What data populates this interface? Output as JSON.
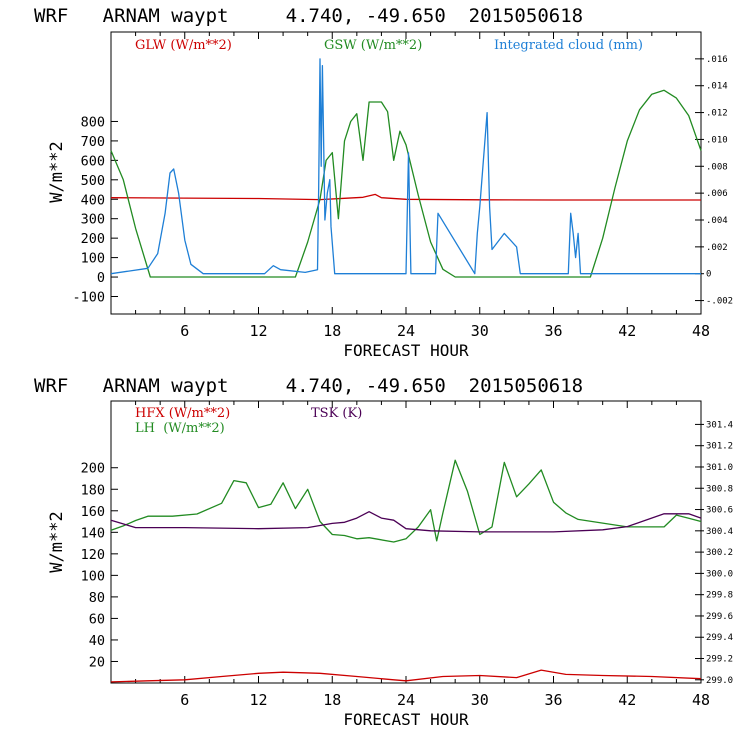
{
  "chart_data": [
    {
      "type": "line",
      "title": "WRF   ARNAM waypt     4.740, -49.650  2015050618",
      "xlabel": "FORECAST HOUR",
      "ylabel": "W/m**2",
      "xlim": [
        0,
        48
      ],
      "ylim": [
        -190,
        1260
      ],
      "x_ticks": [
        6,
        12,
        18,
        24,
        30,
        36,
        42,
        48
      ],
      "y_ticks": [
        -100,
        0,
        100,
        200,
        300,
        400,
        500,
        600,
        700,
        800
      ],
      "y2_ticks": [
        ".016",
        ".014",
        ".012",
        ".010",
        ".008",
        ".006",
        ".004",
        ".002",
        "0",
        "-.002"
      ],
      "y2_values": [
        0.016,
        0.014,
        0.012,
        0.01,
        0.008,
        0.006,
        0.004,
        0.002,
        0,
        -0.002
      ],
      "y2lim": [
        -0.003,
        0.018
      ],
      "legend": [
        {
          "label": "GLW (W/m**2)",
          "color": "#cc0000"
        },
        {
          "label": "GSW (W/m**2)",
          "color": "#228b22"
        },
        {
          "label": "Integrated cloud (mm)",
          "color": "#1e7fd6"
        }
      ],
      "series": [
        {
          "name": "GLW",
          "axis": "left",
          "color": "#cc0000",
          "x": [
            0,
            6,
            12,
            17,
            19,
            20.5,
            21.5,
            22,
            24,
            30,
            36,
            42,
            48
          ],
          "y": [
            408,
            406,
            404,
            398,
            405,
            410,
            425,
            408,
            400,
            397,
            396,
            396,
            396
          ]
        },
        {
          "name": "GSW",
          "axis": "left",
          "color": "#228b22",
          "x": [
            0,
            1,
            2,
            3.2,
            15,
            16,
            17,
            17.5,
            18,
            18.5,
            19,
            19.5,
            20,
            20.5,
            21,
            22,
            22.5,
            23,
            23.5,
            24,
            25,
            26,
            27,
            28,
            39,
            40,
            41,
            42,
            43,
            44,
            45,
            46,
            47,
            48
          ],
          "y": [
            650,
            500,
            250,
            0,
            0,
            180,
            400,
            600,
            640,
            300,
            700,
            800,
            840,
            600,
            900,
            900,
            850,
            600,
            750,
            680,
            420,
            180,
            40,
            0,
            0,
            200,
            460,
            700,
            860,
            940,
            960,
            920,
            830,
            650
          ]
        },
        {
          "name": "Integrated cloud",
          "axis": "right",
          "color": "#1e7fd6",
          "x": [
            0,
            3,
            3.8,
            4.4,
            4.8,
            5.1,
            5.5,
            6,
            6.5,
            7.5,
            12.5,
            13.2,
            13.8,
            15.8,
            16.8,
            16.9,
            17,
            17.1,
            17.2,
            17.4,
            17.6,
            17.8,
            17.9,
            18.2,
            24,
            24.2,
            24.4,
            26.4,
            26.6,
            29.6,
            29.8,
            30,
            30.6,
            30.8,
            31,
            32,
            33,
            33.3,
            37.2,
            37.4,
            37.6,
            37.8,
            38,
            38.2,
            39,
            48
          ],
          "y": [
            0,
            0.0004,
            0.0015,
            0.0045,
            0.0075,
            0.0078,
            0.006,
            0.0025,
            0.0007,
            0,
            0,
            0.0006,
            0.0003,
            0.0001,
            0.0003,
            0.0065,
            0.016,
            0.008,
            0.0155,
            0.004,
            0.006,
            0.007,
            0.0035,
            0,
            0,
            0.009,
            0,
            0,
            0.0045,
            0,
            0.003,
            0.005,
            0.012,
            0.005,
            0.0018,
            0.003,
            0.002,
            0,
            0,
            0.0045,
            0.003,
            0.0012,
            0.003,
            0,
            0,
            0
          ]
        }
      ]
    },
    {
      "type": "line",
      "title": "WRF   ARNAM waypt     4.740, -49.650  2015050618",
      "xlabel": "FORECAST HOUR",
      "ylabel": "W/m**2",
      "xlim": [
        0,
        48
      ],
      "ylim": [
        0,
        262
      ],
      "x_ticks": [
        6,
        12,
        18,
        24,
        30,
        36,
        42,
        48
      ],
      "y_ticks": [
        20,
        40,
        60,
        80,
        100,
        120,
        140,
        160,
        180,
        200
      ],
      "y2_ticks": [
        "301.4",
        "301.2",
        "301.0",
        "300.8",
        "300.6",
        "300.4",
        "300.2",
        "300.0",
        "299.8",
        "299.6",
        "299.4",
        "299.2",
        "299.0"
      ],
      "y2_values": [
        301.4,
        301.2,
        301.0,
        300.8,
        300.6,
        300.4,
        300.2,
        300.0,
        299.8,
        299.6,
        299.4,
        299.2,
        299.0
      ],
      "y2lim": [
        298.97,
        301.62
      ],
      "legend": [
        {
          "label": "HFX (W/m**2)",
          "color": "#cc0000"
        },
        {
          "label": "LH  (W/m**2)",
          "color": "#228b22"
        },
        {
          "label": "TSK (K)",
          "color": "#4b0055"
        }
      ],
      "series": [
        {
          "name": "HFX",
          "axis": "left",
          "color": "#cc0000",
          "x": [
            0,
            3,
            6,
            9,
            12,
            14,
            17,
            20,
            23,
            24,
            27,
            30,
            33,
            35,
            37,
            40,
            44,
            48
          ],
          "y": [
            1,
            2,
            3,
            6,
            9,
            10,
            9,
            6,
            3,
            2,
            6,
            7,
            5,
            12,
            8,
            7,
            6,
            4
          ]
        },
        {
          "name": "LH",
          "axis": "left",
          "color": "#228b22",
          "x": [
            0,
            1,
            2,
            3,
            5,
            7,
            9,
            10,
            11,
            12,
            13,
            14,
            15,
            16,
            17,
            18,
            19,
            20,
            21,
            23,
            24,
            25,
            26,
            26.5,
            27,
            28,
            29,
            30,
            31,
            32,
            33,
            34,
            35,
            36,
            37,
            38,
            42,
            45,
            46,
            47,
            48
          ],
          "y": [
            142,
            146,
            151,
            155,
            155,
            157,
            167,
            188,
            186,
            163,
            166,
            186,
            162,
            180,
            150,
            138,
            137,
            134,
            135,
            131,
            134,
            145,
            161,
            132,
            158,
            207,
            178,
            138,
            145,
            205,
            173,
            185,
            198,
            168,
            158,
            152,
            145,
            145,
            156,
            153,
            150
          ]
        },
        {
          "name": "TSK",
          "axis": "right",
          "color": "#4b0055",
          "x": [
            0,
            2,
            6,
            12,
            16,
            18,
            19,
            20,
            21,
            22,
            23,
            24,
            26,
            30,
            36,
            40,
            42,
            45,
            47,
            48
          ],
          "y": [
            300.5,
            300.43,
            300.43,
            300.42,
            300.43,
            300.47,
            300.48,
            300.52,
            300.58,
            300.52,
            300.5,
            300.42,
            300.4,
            300.39,
            300.39,
            300.41,
            300.44,
            300.56,
            300.56,
            300.52
          ]
        }
      ]
    }
  ]
}
